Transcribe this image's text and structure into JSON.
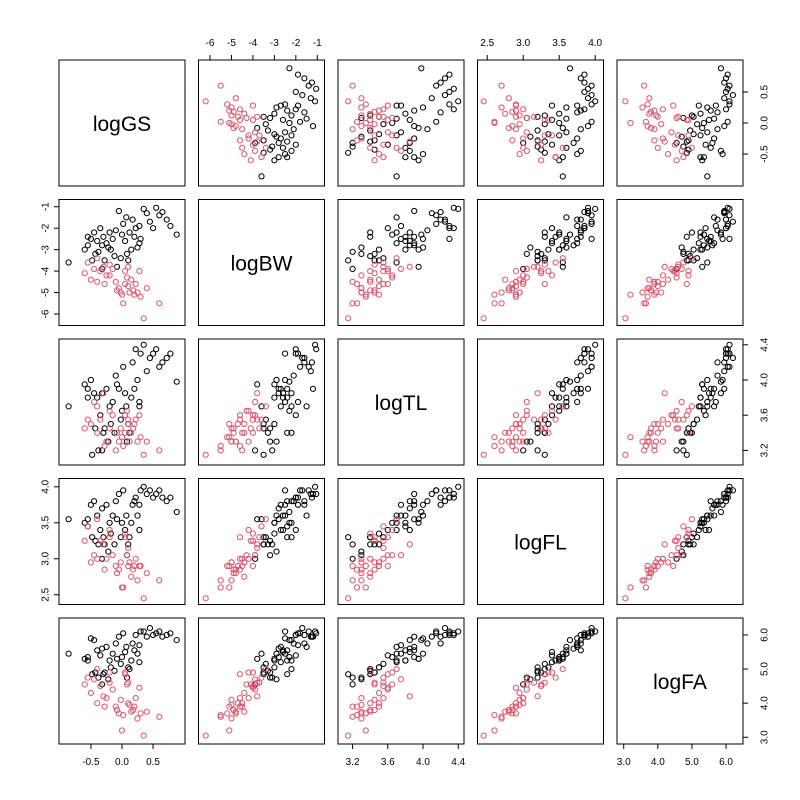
{
  "chart_data": {
    "type": "scatter",
    "title": "",
    "variables": [
      "logGS",
      "logBW",
      "logTL",
      "logFL",
      "logFA"
    ],
    "ranges": {
      "logGS": [
        -0.95,
        0.95
      ],
      "logBW": [
        -6.35,
        -0.85
      ],
      "logTL": [
        3.08,
        4.42
      ],
      "logFL": [
        2.42,
        4.06
      ],
      "logFA": [
        2.92,
        6.38
      ]
    },
    "axis_ticks": {
      "logGS": [
        -0.5,
        0.0,
        0.5
      ],
      "logBW": [
        -6,
        -5,
        -4,
        -3,
        -2,
        -1
      ],
      "logTL": [
        3.2,
        3.6,
        4.0,
        4.4
      ],
      "logFL": [
        2.5,
        3.0,
        3.5,
        4.0
      ],
      "logFA": [
        3.0,
        4.0,
        5.0,
        6.0
      ]
    },
    "tick_labels": {
      "logGS": [
        "-0.5",
        "0.0",
        "0.5"
      ],
      "logBW": [
        "-6",
        "-5",
        "-4",
        "-3",
        "-2",
        "-1"
      ],
      "logTL": [
        "3.2",
        "3.6",
        "4.0",
        "4.4"
      ],
      "logFL": [
        "2.5",
        "3.0",
        "3.5",
        "4.0"
      ],
      "logFA": [
        "3.0",
        "4.0",
        "5.0",
        "6.0"
      ]
    },
    "grid": false,
    "legend": "none",
    "series": [
      {
        "color": "#000000",
        "points": [
          [
            -0.86,
            -3.6,
            3.7,
            3.55,
            5.45
          ],
          [
            -0.6,
            -3.0,
            3.95,
            3.5,
            5.3
          ],
          [
            -0.55,
            -2.8,
            3.9,
            3.55,
            5.35
          ],
          [
            -0.5,
            -2.5,
            4.0,
            3.75,
            5.9
          ],
          [
            -0.48,
            -3.5,
            3.15,
            3.3,
            4.85
          ],
          [
            -0.45,
            -2.2,
            3.85,
            3.8,
            5.85
          ],
          [
            -0.43,
            -3.2,
            3.45,
            3.25,
            4.9
          ],
          [
            -0.4,
            -2.6,
            3.8,
            3.6,
            5.55
          ],
          [
            -0.38,
            -3.1,
            3.2,
            3.2,
            4.75
          ],
          [
            -0.35,
            -2.0,
            3.6,
            3.4,
            5.4
          ],
          [
            -0.32,
            -2.8,
            3.85,
            3.7,
            5.6
          ],
          [
            -0.3,
            -2.4,
            3.4,
            3.3,
            4.85
          ],
          [
            -0.28,
            -3.5,
            3.45,
            3.2,
            4.9
          ],
          [
            -0.25,
            -2.7,
            3.9,
            3.75,
            5.65
          ],
          [
            -0.22,
            -2.9,
            3.3,
            3.1,
            4.7
          ],
          [
            -0.2,
            -2.2,
            3.7,
            3.5,
            5.25
          ],
          [
            -0.18,
            -3.0,
            3.5,
            3.35,
            5.05
          ],
          [
            -0.15,
            -2.5,
            3.75,
            3.6,
            5.45
          ],
          [
            -0.12,
            -3.3,
            3.4,
            3.2,
            4.95
          ],
          [
            -0.1,
            -2.1,
            4.05,
            3.8,
            5.75
          ],
          [
            -0.08,
            -3.8,
            3.95,
            3.55,
            5.3
          ],
          [
            -0.05,
            -1.2,
            3.9,
            3.9,
            5.95
          ],
          [
            -0.02,
            -3.4,
            3.55,
            3.3,
            5.15
          ],
          [
            0.0,
            -2.3,
            3.65,
            3.5,
            5.35
          ],
          [
            0.02,
            -1.8,
            4.15,
            3.95,
            6.05
          ],
          [
            0.05,
            -2.6,
            3.85,
            3.4,
            5.5
          ],
          [
            0.07,
            -1.5,
            3.7,
            3.6,
            5.65
          ],
          [
            0.1,
            -3.5,
            3.5,
            3.2,
            5.05
          ],
          [
            0.12,
            -2.2,
            3.4,
            3.3,
            5.0
          ],
          [
            0.15,
            -3.0,
            3.8,
            3.5,
            5.25
          ],
          [
            0.17,
            -1.6,
            4.2,
            3.75,
            5.75
          ],
          [
            0.2,
            -2.4,
            3.9,
            3.8,
            5.55
          ],
          [
            0.22,
            -2.0,
            4.35,
            3.85,
            6.0
          ],
          [
            0.25,
            -2.9,
            4.0,
            3.6,
            5.45
          ],
          [
            0.28,
            -1.9,
            3.75,
            3.75,
            5.7
          ],
          [
            0.3,
            -2.5,
            4.3,
            3.95,
            6.1
          ],
          [
            0.35,
            -1.1,
            4.4,
            4.0,
            6.1
          ],
          [
            0.4,
            -1.3,
            4.1,
            3.9,
            5.95
          ],
          [
            0.45,
            -1.7,
            4.25,
            3.95,
            6.2
          ],
          [
            0.5,
            -2.0,
            4.3,
            3.85,
            6.0
          ],
          [
            0.55,
            -1.05,
            4.35,
            3.9,
            6.05
          ],
          [
            0.6,
            -1.4,
            4.15,
            3.95,
            6.1
          ],
          [
            0.65,
            -1.25,
            4.2,
            3.85,
            5.95
          ],
          [
            0.72,
            -1.6,
            4.25,
            3.8,
            6.0
          ],
          [
            0.78,
            -1.9,
            4.3,
            3.85,
            6.05
          ],
          [
            0.88,
            -2.3,
            3.98,
            3.65,
            5.85
          ],
          [
            -0.32,
            -3.9,
            3.2,
            3.0,
            4.55
          ],
          [
            0.08,
            -3.2,
            3.3,
            3.05,
            4.75
          ],
          [
            0.28,
            -2.7,
            3.7,
            3.4,
            5.2
          ],
          [
            -0.55,
            -2.4,
            3.8,
            3.45,
            5.25
          ]
        ]
      },
      {
        "color": "#df536b",
        "points": [
          [
            -0.45,
            -3.9,
            3.75,
            3.05,
            4.7
          ],
          [
            -0.5,
            -4.4,
            3.5,
            2.95,
            4.3
          ],
          [
            -0.4,
            -4.5,
            3.4,
            3.0,
            4.0
          ],
          [
            -0.35,
            -4.0,
            3.55,
            3.25,
            4.5
          ],
          [
            -0.3,
            -3.8,
            3.85,
            3.2,
            4.2
          ],
          [
            -0.25,
            -4.2,
            3.3,
            3.0,
            4.15
          ],
          [
            -0.2,
            -3.7,
            3.45,
            3.3,
            4.6
          ],
          [
            -0.15,
            -3.9,
            3.6,
            3.05,
            4.4
          ],
          [
            -0.1,
            -4.5,
            3.2,
            2.9,
            3.9
          ],
          [
            -0.05,
            -4.8,
            3.3,
            2.85,
            3.7
          ],
          [
            -0.08,
            -4.9,
            3.4,
            2.8,
            3.8
          ],
          [
            -0.02,
            -5.0,
            3.45,
            2.95,
            4.1
          ],
          [
            0.0,
            -5.1,
            3.35,
            2.6,
            3.2
          ],
          [
            0.02,
            -5.5,
            3.25,
            2.6,
            3.65
          ],
          [
            0.05,
            -4.6,
            3.6,
            3.3,
            4.85
          ],
          [
            0.08,
            -4.3,
            3.65,
            3.05,
            4.55
          ],
          [
            0.1,
            -4.7,
            3.5,
            2.9,
            4.0
          ],
          [
            0.12,
            -5.0,
            3.3,
            2.95,
            3.95
          ],
          [
            0.15,
            -4.4,
            3.4,
            2.75,
            3.75
          ],
          [
            0.18,
            -4.9,
            3.45,
            2.85,
            3.8
          ],
          [
            0.2,
            -5.1,
            3.5,
            2.9,
            3.9
          ],
          [
            0.22,
            -4.6,
            3.55,
            3.0,
            4.15
          ],
          [
            0.25,
            -5.0,
            3.3,
            2.7,
            3.55
          ],
          [
            0.3,
            -5.2,
            3.35,
            2.9,
            3.7
          ],
          [
            0.35,
            -6.2,
            3.15,
            2.45,
            3.05
          ],
          [
            0.6,
            -5.5,
            3.2,
            2.7,
            3.6
          ],
          [
            -0.55,
            -3.6,
            3.55,
            3.45,
            4.75
          ],
          [
            -0.6,
            -4.1,
            3.45,
            3.25,
            4.55
          ],
          [
            -0.2,
            -4.2,
            3.65,
            3.4,
            4.9
          ],
          [
            0.4,
            -4.8,
            3.3,
            2.8,
            3.75
          ],
          [
            -0.4,
            -3.4,
            3.7,
            3.55,
            5.0
          ],
          [
            0.05,
            -4.0,
            3.4,
            3.35,
            4.9
          ],
          [
            0.1,
            -3.8,
            3.55,
            3.15,
            4.6
          ],
          [
            -0.28,
            -4.6,
            3.25,
            2.85,
            3.9
          ],
          [
            0.28,
            -4.0,
            3.6,
            2.9,
            4.45
          ]
        ]
      }
    ]
  }
}
